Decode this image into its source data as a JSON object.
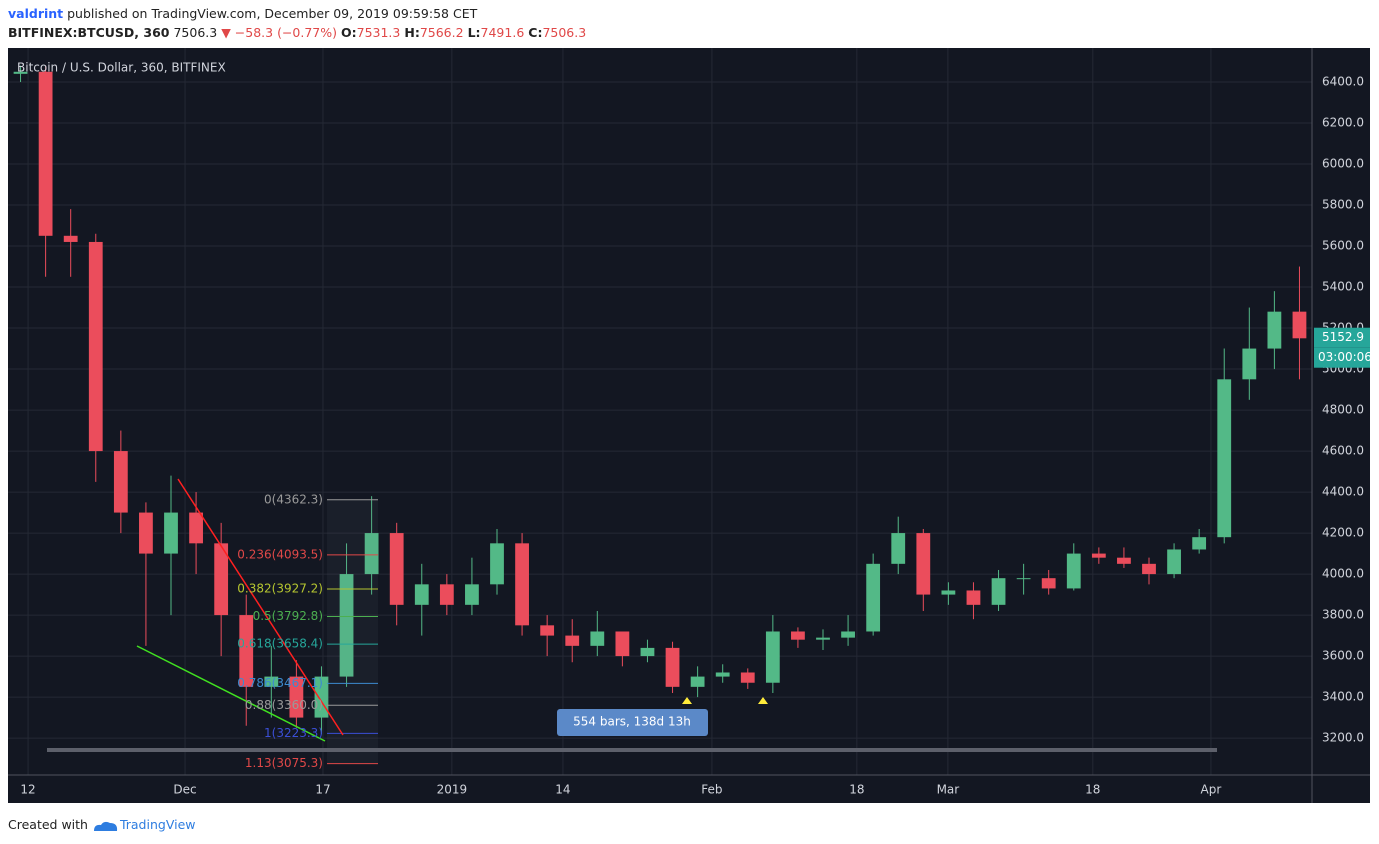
{
  "header": {
    "author": "valdrint",
    "published": "published on TradingView.com, December 09, 2019 09:59:58 CET",
    "symbol": "BITFINEX:BTCUSD, 360",
    "price": "7506.3",
    "change": "▼ −58.3 (−0.77%)",
    "ohlc": [
      {
        "key": "O:",
        "value": "7531.3"
      },
      {
        "key": "H:",
        "value": "7566.2"
      },
      {
        "key": "L:",
        "value": "7491.6"
      },
      {
        "key": "C:",
        "value": "7506.3"
      }
    ]
  },
  "chart_data": {
    "type": "candlestick",
    "title": "Bitcoin / U.S. Dollar, 360, BITFINEX",
    "up_color": "#53b987",
    "down_color": "#eb4d5c",
    "grid": true,
    "xlim": [
      0,
      52
    ],
    "ylim": [
      3020,
      6566
    ],
    "xticks": [
      {
        "value": 0.8,
        "label": "12"
      },
      {
        "value": 7.06,
        "label": "Dec"
      },
      {
        "value": 12.56,
        "label": "17"
      },
      {
        "value": 17.7,
        "label": "2019"
      },
      {
        "value": 22.13,
        "label": "14"
      },
      {
        "value": 28.07,
        "label": "Feb"
      },
      {
        "value": 33.85,
        "label": "18"
      },
      {
        "value": 37.48,
        "label": "Mar"
      },
      {
        "value": 43.26,
        "label": "18"
      },
      {
        "value": 47.97,
        "label": "Apr"
      }
    ],
    "yticks": [
      {
        "value": 3200,
        "label": "3200.0"
      },
      {
        "value": 3400,
        "label": "3400.0"
      },
      {
        "value": 3600,
        "label": "3600.0"
      },
      {
        "value": 3800,
        "label": "3800.0"
      },
      {
        "value": 4000,
        "label": "4000.0"
      },
      {
        "value": 4200,
        "label": "4200.0"
      },
      {
        "value": 4400,
        "label": "4400.0"
      },
      {
        "value": 4600,
        "label": "4600.0"
      },
      {
        "value": 4800,
        "label": "4800.0"
      },
      {
        "value": 5000,
        "label": "5000.0"
      },
      {
        "value": 5200,
        "label": "5200.0"
      },
      {
        "value": 5400,
        "label": "5400.0"
      },
      {
        "value": 5600,
        "label": "5600.0"
      },
      {
        "value": 5800,
        "label": "5800.0"
      },
      {
        "value": 6000,
        "label": "6000.0"
      },
      {
        "value": 6200,
        "label": "6200.0"
      },
      {
        "value": 6400,
        "label": "6400.0"
      }
    ],
    "open": [
      6440,
      6450,
      5650,
      5620,
      4600,
      4300,
      4100,
      4300,
      4150,
      3800,
      3450,
      3500,
      3300,
      3500,
      4000,
      4200,
      3850,
      3950,
      3850,
      3950,
      4150,
      3750,
      3700,
      3650,
      3720,
      3600,
      3640,
      3450,
      3500,
      3520,
      3470,
      3720,
      3680,
      3690,
      3720,
      4050,
      4200,
      3900,
      3920,
      3850,
      3980,
      3980,
      3930,
      4100,
      4080,
      4050,
      4000,
      4120,
      4180,
      4950,
      5100,
      5280
    ],
    "high": [
      6480,
      6480,
      5780,
      5660,
      4700,
      4350,
      4480,
      4400,
      4250,
      3900,
      3650,
      3580,
      3550,
      4150,
      4380,
      4250,
      4050,
      4000,
      4080,
      4220,
      4200,
      3800,
      3780,
      3820,
      3720,
      3680,
      3670,
      3550,
      3560,
      3540,
      3800,
      3740,
      3730,
      3800,
      4100,
      4280,
      4220,
      3960,
      3960,
      4020,
      4050,
      4020,
      4150,
      4130,
      4130,
      4080,
      4150,
      4220,
      5100,
      5300,
      5380,
      5500
    ],
    "low": [
      6400,
      5450,
      5450,
      4450,
      4200,
      3650,
      3800,
      4000,
      3600,
      3260,
      3300,
      3250,
      3220,
      3450,
      3900,
      3750,
      3700,
      3800,
      3800,
      3900,
      3700,
      3600,
      3570,
      3600,
      3550,
      3570,
      3420,
      3400,
      3470,
      3440,
      3420,
      3640,
      3630,
      3650,
      3700,
      4000,
      3820,
      3850,
      3780,
      3820,
      3900,
      3900,
      3920,
      4050,
      4030,
      3950,
      3980,
      4100,
      4150,
      4850,
      5000,
      4950
    ],
    "close": [
      6450,
      5650,
      5620,
      4600,
      4300,
      4100,
      4300,
      4150,
      3800,
      3450,
      3500,
      3300,
      3500,
      4000,
      4200,
      3850,
      3950,
      3850,
      3950,
      4150,
      3750,
      3700,
      3650,
      3720,
      3600,
      3640,
      3450,
      3500,
      3520,
      3470,
      3720,
      3680,
      3690,
      3720,
      4050,
      4200,
      3900,
      3920,
      3850,
      3980,
      3980,
      3930,
      4100,
      4080,
      4050,
      4000,
      4120,
      4180,
      4950,
      5100,
      5280,
      5150
    ],
    "fib_levels": [
      {
        "value": 4362.3,
        "label": "0(4362.3)",
        "color": "#9a9a9a"
      },
      {
        "value": 4093.5,
        "label": "0.236(4093.5)",
        "color": "#e04848"
      },
      {
        "value": 3927.2,
        "label": "0.382(3927.2)",
        "color": "#b5c530"
      },
      {
        "value": 3792.8,
        "label": "0.5(3792.8)",
        "color": "#4caf50"
      },
      {
        "value": 3658.4,
        "label": "0.618(3658.4)",
        "color": "#26a69a"
      },
      {
        "value": 3467.1,
        "label": "0.786(3467.1)",
        "color": "#3d8bd0"
      },
      {
        "value": 3360.0,
        "label": "0.88(3360.0)",
        "color": "#9a9a9a"
      },
      {
        "value": 3223.3,
        "label": "1(3223.3)",
        "color": "#3b4fd6"
      },
      {
        "value": 3075.3,
        "label": "1.13(3075.3)",
        "color": "#e04848"
      }
    ],
    "last_price": 5152.9,
    "countdown": "03:00:06",
    "measure": "554 bars, 138d 13h"
  },
  "footer": {
    "created": "Created with",
    "brand": "TradingView"
  }
}
